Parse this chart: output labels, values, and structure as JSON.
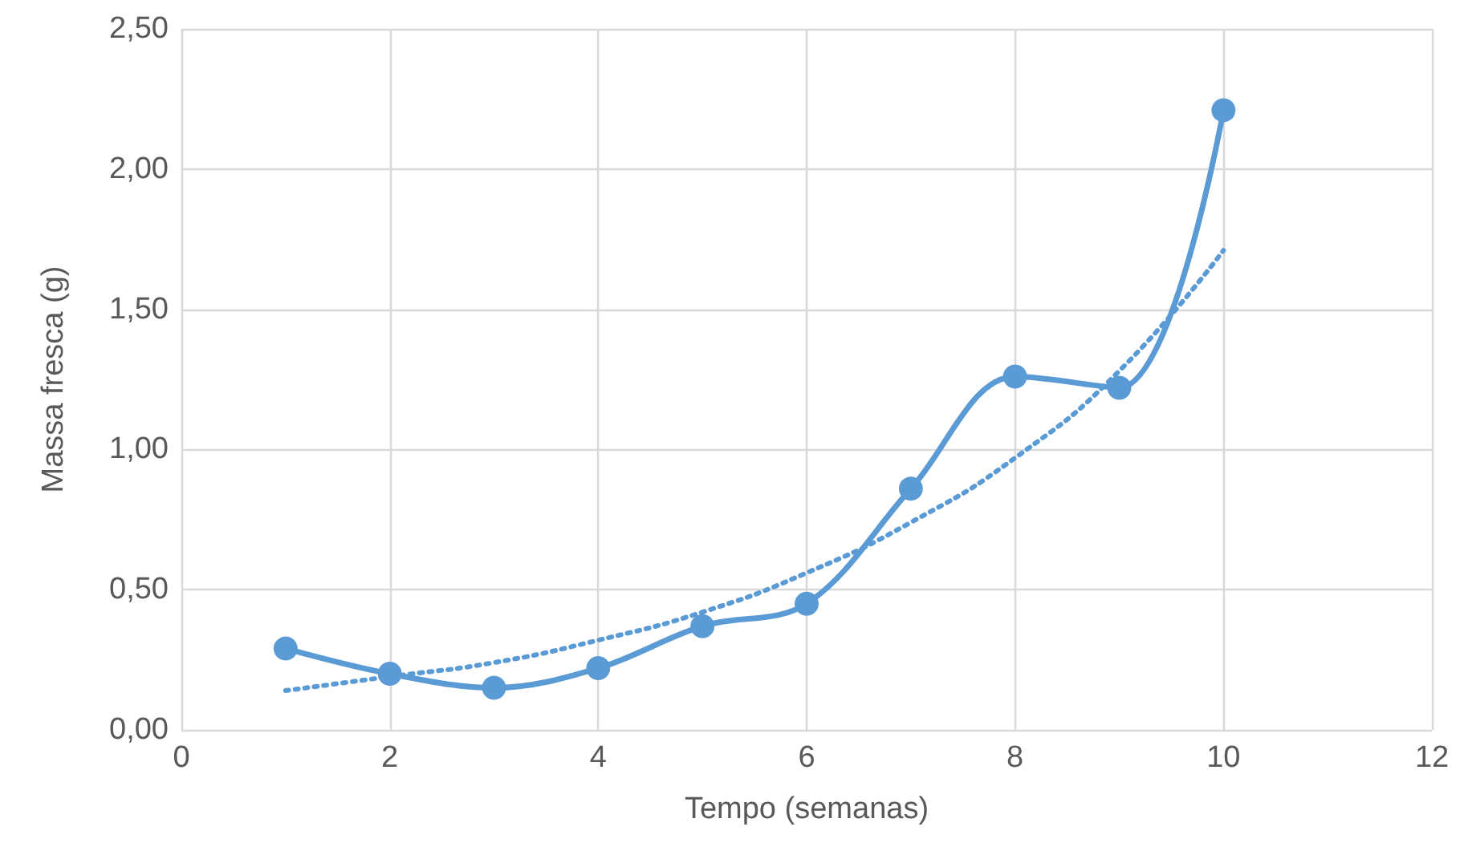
{
  "chart_data": {
    "type": "line",
    "xlabel": "Tempo (semanas)",
    "ylabel": "Massa fresca (g)",
    "xlim": [
      0,
      12
    ],
    "xticks": [
      0,
      2,
      4,
      6,
      8,
      10,
      12
    ],
    "ylim": [
      0,
      2.5
    ],
    "yticks": [
      {
        "value": 0,
        "label": "0,00"
      },
      {
        "value": 0.5,
        "label": "0,50"
      },
      {
        "value": 1,
        "label": "1,00"
      },
      {
        "value": 1.5,
        "label": "1,50"
      },
      {
        "value": 2,
        "label": "2,00"
      },
      {
        "value": 2.5,
        "label": "2,50"
      }
    ],
    "grid": true,
    "series": [
      {
        "color": "#5b9bd5",
        "marker": "circle",
        "line_style": "solid",
        "x": [
          1,
          2,
          3,
          4,
          5,
          6,
          7,
          8,
          9,
          10
        ],
        "values": [
          0.29,
          0.2,
          0.15,
          0.22,
          0.37,
          0.45,
          0.86,
          1.26,
          1.22,
          2.21
        ]
      },
      {
        "color": "#5b9bd5",
        "marker": "none",
        "line_style": "dotted",
        "x": [
          1,
          2,
          3,
          4,
          5,
          6,
          7,
          8,
          9,
          10
        ],
        "values": [
          0.14,
          0.19,
          0.24,
          0.32,
          0.42,
          0.56,
          0.74,
          0.97,
          1.28,
          1.71
        ]
      }
    ]
  }
}
